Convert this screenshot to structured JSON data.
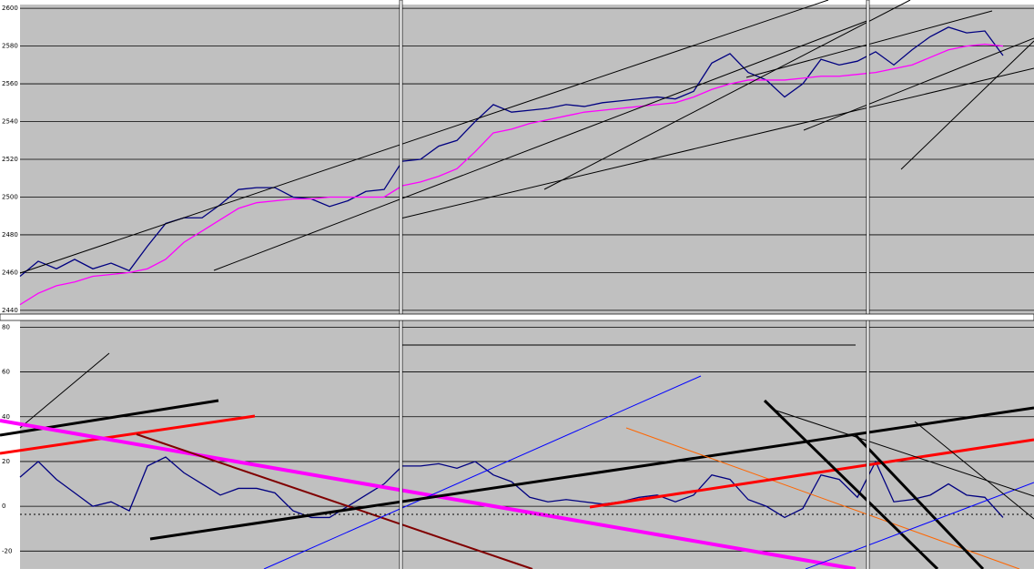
{
  "chart_data": [
    {
      "type": "line",
      "ylim": [
        2438,
        2602
      ],
      "yticks": [
        2440,
        2460,
        2480,
        2500,
        2520,
        2540,
        2560,
        2580,
        2600
      ],
      "grid": true,
      "series": [
        {
          "color": "#000080",
          "values": [
            2458,
            2466,
            2462,
            2467,
            2462,
            2465,
            2461,
            2474,
            2486,
            2489,
            2489,
            2496,
            2504,
            2505,
            2505,
            2500,
            2499,
            2495,
            2498,
            2503,
            2504,
            2519,
            2520,
            2527,
            2530,
            2540,
            2549,
            2545,
            2546,
            2547,
            2549,
            2548,
            2550,
            2551,
            2552,
            2553,
            2552,
            2556,
            2571,
            2576,
            2566,
            2562,
            2553,
            2560,
            2573,
            2570,
            2572,
            2577,
            2570,
            2578,
            2585,
            2590,
            2587,
            2588,
            2575
          ]
        },
        {
          "color": "#ff00ff",
          "values": [
            2443,
            2449,
            2453,
            2455,
            2458,
            2459,
            2460,
            2462,
            2467,
            2476,
            2482,
            2488,
            2494,
            2497,
            2498,
            2499,
            2499,
            2500,
            2500,
            2500,
            2500,
            2506,
            2508,
            2511,
            2515,
            2524,
            2534,
            2536,
            2539,
            2541,
            2543,
            2545,
            2546,
            2547,
            2548,
            2549,
            2550,
            2553,
            2557,
            2560,
            2562,
            2562,
            2562,
            2563,
            2564,
            2564,
            2565,
            2566,
            2568,
            2570,
            2574,
            2578,
            2580,
            2581,
            2580
          ]
        }
      ]
    },
    {
      "type": "line",
      "ylim": [
        -28,
        83
      ],
      "yticks": [
        -20,
        0,
        20,
        40,
        60,
        80
      ],
      "grid": true,
      "series": [
        {
          "color": "#000080",
          "values": [
            13,
            20,
            12,
            6,
            0,
            2,
            -2,
            18,
            22,
            15,
            10,
            5,
            8,
            8,
            6,
            -2,
            -5,
            -5,
            0,
            5,
            10,
            18,
            18,
            19,
            17,
            20,
            14,
            11,
            4,
            2,
            3,
            2,
            1,
            2,
            4,
            5,
            2,
            5,
            14,
            12,
            3,
            0,
            -5,
            -1,
            14,
            12,
            4,
            20,
            2,
            3,
            5,
            10,
            5,
            4,
            -5
          ]
        }
      ]
    }
  ]
}
